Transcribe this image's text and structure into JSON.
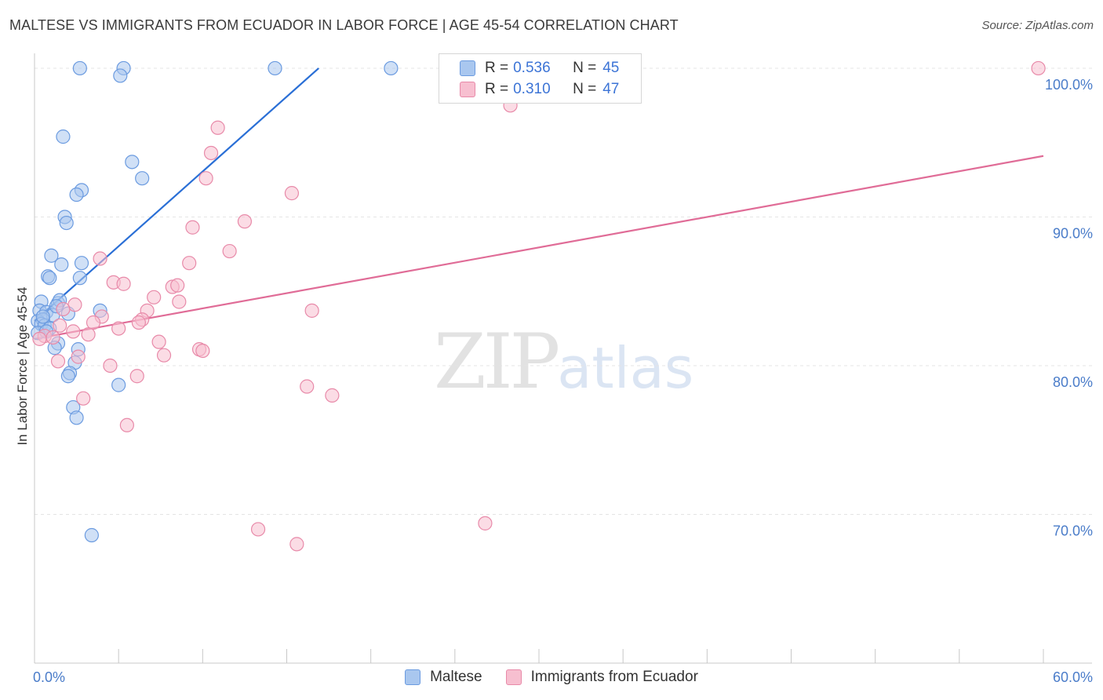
{
  "title": "MALTESE VS IMMIGRANTS FROM ECUADOR IN LABOR FORCE | AGE 45-54 CORRELATION CHART",
  "source": "Source: ZipAtlas.com",
  "watermark": {
    "zip": "ZIP",
    "atlas": "atlas"
  },
  "colors": {
    "blue_fill": "#a9c7ef",
    "blue_stroke": "#6b9be0",
    "blue_line": "#2a6fd6",
    "pink_fill": "#f7bfd0",
    "pink_stroke": "#e88aa9",
    "pink_line": "#e06c97",
    "grid": "#e4e4e4",
    "tick_text": "#4a7cc9"
  },
  "legend": {
    "rows": [
      {
        "r_label": "R =",
        "r_value": "0.536",
        "n_label": "N =",
        "n_value": "45"
      },
      {
        "r_label": "R =",
        "r_value": "0.310",
        "n_label": "N =",
        "n_value": "47"
      }
    ]
  },
  "bottom_legend": {
    "series1": "Maltese",
    "series2": "Immigrants from Ecuador"
  },
  "chart_data": {
    "type": "scatter",
    "title": "MALTESE VS IMMIGRANTS FROM ECUADOR IN LABOR FORCE | AGE 45-54 CORRELATION CHART",
    "xlabel": "",
    "ylabel": "In Labor Force | Age 45-54",
    "xlim": [
      0,
      60
    ],
    "ylim": [
      60,
      101
    ],
    "x_tick_labels": [
      "0.0%",
      "60.0%"
    ],
    "y_ticks": [
      70,
      80,
      90,
      100
    ],
    "y_tick_labels": [
      "70.0%",
      "80.0%",
      "90.0%",
      "100.0%"
    ],
    "series": [
      {
        "name": "Maltese",
        "color": "blue",
        "r": 0.536,
        "n": 45,
        "trendline": {
          "x": [
            0,
            16.9
          ],
          "y": [
            83.0,
            100.0
          ]
        },
        "points": [
          [
            2.7,
            100
          ],
          [
            5.3,
            100
          ],
          [
            14.3,
            100
          ],
          [
            21.2,
            100
          ],
          [
            5.1,
            99.5
          ],
          [
            1.7,
            95.4
          ],
          [
            5.8,
            93.7
          ],
          [
            6.4,
            92.6
          ],
          [
            2.8,
            91.8
          ],
          [
            2.5,
            91.5
          ],
          [
            1.8,
            90.0
          ],
          [
            1.9,
            89.6
          ],
          [
            1.0,
            87.4
          ],
          [
            1.6,
            86.8
          ],
          [
            2.8,
            86.9
          ],
          [
            0.8,
            86.0
          ],
          [
            0.9,
            85.9
          ],
          [
            2.7,
            85.9
          ],
          [
            0.4,
            84.3
          ],
          [
            1.4,
            84.2
          ],
          [
            1.5,
            84.4
          ],
          [
            0.3,
            83.7
          ],
          [
            0.7,
            83.6
          ],
          [
            1.1,
            83.4
          ],
          [
            2.0,
            83.5
          ],
          [
            3.9,
            83.7
          ],
          [
            0.2,
            83.0
          ],
          [
            0.5,
            83.1
          ],
          [
            0.4,
            82.8
          ],
          [
            0.6,
            82.7
          ],
          [
            0.9,
            82.5
          ],
          [
            0.2,
            82.2
          ],
          [
            1.4,
            81.5
          ],
          [
            1.2,
            81.2
          ],
          [
            2.6,
            81.1
          ],
          [
            2.4,
            80.2
          ],
          [
            2.1,
            79.5
          ],
          [
            2.0,
            79.3
          ],
          [
            5.0,
            78.7
          ],
          [
            2.3,
            77.2
          ],
          [
            2.5,
            76.5
          ],
          [
            3.4,
            68.6
          ],
          [
            0.7,
            82.3
          ],
          [
            0.5,
            83.3
          ],
          [
            1.3,
            84.0
          ]
        ]
      },
      {
        "name": "Immigrants from Ecuador",
        "color": "pink",
        "r": 0.31,
        "n": 47,
        "trendline": {
          "x": [
            0,
            60
          ],
          "y": [
            81.8,
            94.1
          ]
        },
        "points": [
          [
            59.7,
            100
          ],
          [
            28.3,
            97.5
          ],
          [
            10.9,
            96.0
          ],
          [
            10.5,
            94.3
          ],
          [
            10.2,
            92.6
          ],
          [
            15.3,
            91.6
          ],
          [
            12.5,
            89.7
          ],
          [
            9.4,
            89.3
          ],
          [
            11.6,
            87.7
          ],
          [
            3.9,
            87.2
          ],
          [
            9.2,
            86.9
          ],
          [
            4.7,
            85.6
          ],
          [
            5.3,
            85.5
          ],
          [
            8.2,
            85.3
          ],
          [
            8.5,
            85.4
          ],
          [
            7.1,
            84.6
          ],
          [
            8.6,
            84.3
          ],
          [
            2.4,
            84.1
          ],
          [
            1.7,
            83.8
          ],
          [
            6.7,
            83.7
          ],
          [
            16.5,
            83.7
          ],
          [
            4.0,
            83.3
          ],
          [
            6.4,
            83.1
          ],
          [
            6.2,
            82.9
          ],
          [
            3.5,
            82.9
          ],
          [
            1.5,
            82.7
          ],
          [
            5.0,
            82.5
          ],
          [
            3.2,
            82.1
          ],
          [
            0.6,
            82.0
          ],
          [
            0.3,
            81.8
          ],
          [
            7.4,
            81.6
          ],
          [
            9.8,
            81.1
          ],
          [
            10.0,
            81.0
          ],
          [
            7.7,
            80.7
          ],
          [
            2.6,
            80.6
          ],
          [
            1.4,
            80.3
          ],
          [
            4.5,
            80.0
          ],
          [
            6.1,
            79.3
          ],
          [
            16.2,
            78.6
          ],
          [
            17.7,
            78.0
          ],
          [
            2.9,
            77.8
          ],
          [
            5.5,
            76.0
          ],
          [
            26.8,
            69.4
          ],
          [
            13.3,
            69.0
          ],
          [
            15.6,
            68.0
          ],
          [
            1.1,
            81.9
          ],
          [
            2.3,
            82.3
          ]
        ]
      }
    ]
  }
}
